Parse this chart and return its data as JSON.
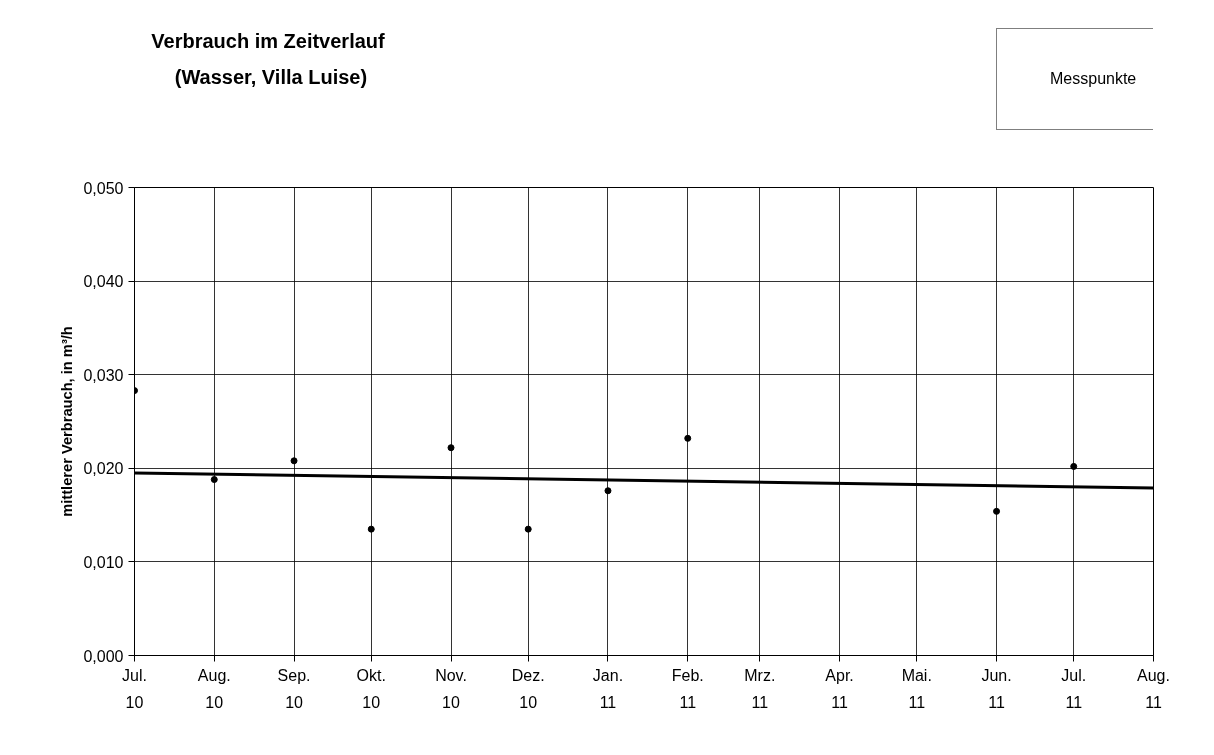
{
  "chart_data": {
    "type": "scatter",
    "title": "Verbrauch im Zeitverlauf",
    "subtitle": "(Wasser, Villa Luise)",
    "ylabel": "mittlerer Verbrauch, in m³/h",
    "series": [
      {
        "name": "Messpunkte",
        "color": "#000000",
        "marker": "circle",
        "x": [
          "2010-07-01",
          "2010-08-01",
          "2010-09-01",
          "2010-10-01",
          "2010-11-01",
          "2010-12-01",
          "2011-01-01",
          "2011-02-01",
          "2011-06-01",
          "2011-07-01"
        ],
        "values": [
          0.0283,
          0.0188,
          0.0208,
          0.0135,
          0.0222,
          0.0135,
          0.0176,
          0.0232,
          0.0154,
          0.0202
        ]
      },
      {
        "type": "line",
        "color": "#000000",
        "x": [
          "2010-07-01",
          "2011-08-01"
        ],
        "values": [
          0.0195,
          0.0179
        ]
      }
    ],
    "xlim": [
      "2010-07-01",
      "2011-08-01"
    ],
    "xticks": [
      {
        "value": "2010-07-01",
        "label": "Jul.\n10"
      },
      {
        "value": "2010-08-01",
        "label": "Aug.\n10"
      },
      {
        "value": "2010-09-01",
        "label": "Sep.\n10"
      },
      {
        "value": "2010-10-01",
        "label": "Okt.\n10"
      },
      {
        "value": "2010-11-01",
        "label": "Nov.\n10"
      },
      {
        "value": "2010-12-01",
        "label": "Dez.\n10"
      },
      {
        "value": "2011-01-01",
        "label": "Jan.\n11"
      },
      {
        "value": "2011-02-01",
        "label": "Feb.\n11"
      },
      {
        "value": "2011-03-01",
        "label": "Mrz.\n11"
      },
      {
        "value": "2011-04-01",
        "label": "Apr.\n11"
      },
      {
        "value": "2011-05-01",
        "label": "Mai.\n11"
      },
      {
        "value": "2011-06-01",
        "label": "Jun.\n11"
      },
      {
        "value": "2011-07-01",
        "label": "Jul.\n11"
      },
      {
        "value": "2011-08-01",
        "label": "Aug.\n11"
      }
    ],
    "ylim": [
      0,
      0.05
    ],
    "yticks": [
      {
        "value": 0,
        "label": "0,000"
      },
      {
        "value": 0.01,
        "label": "0,010"
      },
      {
        "value": 0.02,
        "label": "0,020"
      },
      {
        "value": 0.03,
        "label": "0,030"
      },
      {
        "value": 0.04,
        "label": "0,040"
      },
      {
        "value": 0.05,
        "label": "0,050"
      }
    ],
    "grid": true,
    "legend": "top right",
    "line_style": "solid"
  }
}
